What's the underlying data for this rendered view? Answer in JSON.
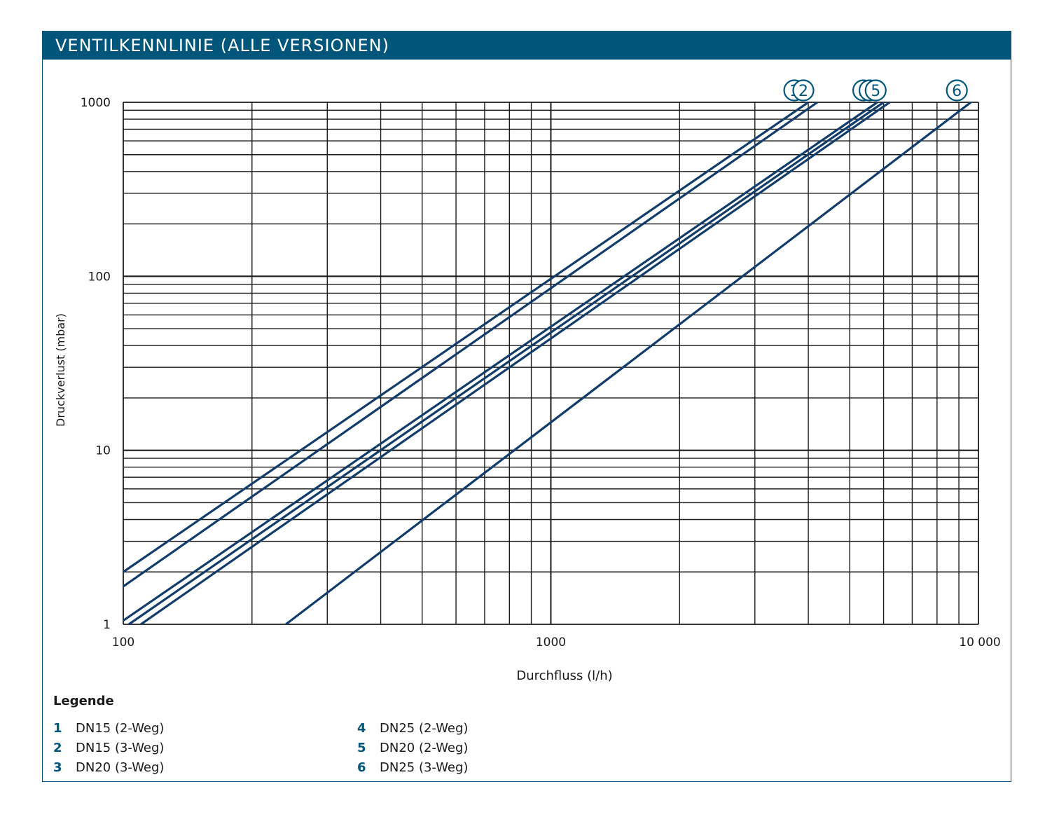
{
  "header": {
    "title": "VENTILKENNLINIE (ALLE VERSIONEN)"
  },
  "chart_data": {
    "type": "line",
    "title": "",
    "xlabel": "Durchfluss (l/h)",
    "ylabel": "Druckverlust (mbar)",
    "xscale": "log",
    "yscale": "log",
    "xlim": [
      100,
      10000
    ],
    "ylim": [
      1,
      1000
    ],
    "x_ticks": [
      "100",
      "1000",
      "10 000"
    ],
    "y_ticks": [
      "1",
      "10",
      "100",
      "1000"
    ],
    "grid": true,
    "series": [
      {
        "name": "1",
        "points": [
          [
            100,
            2.0
          ],
          [
            1000,
            78
          ],
          [
            4000,
            1000
          ]
        ]
      },
      {
        "name": "2",
        "points": [
          [
            100,
            1.65
          ],
          [
            1000,
            60
          ],
          [
            4200,
            1000
          ]
        ]
      },
      {
        "name": "3",
        "points": [
          [
            100,
            1.05
          ],
          [
            1000,
            52
          ],
          [
            5800,
            1000
          ]
        ]
      },
      {
        "name": "4",
        "points": [
          [
            100,
            0.95
          ],
          [
            1000,
            46
          ],
          [
            6000,
            1000
          ]
        ]
      },
      {
        "name": "5",
        "points": [
          [
            100,
            0.85
          ],
          [
            1000,
            42
          ],
          [
            6200,
            1000
          ]
        ]
      },
      {
        "name": "6",
        "points": [
          [
            240,
            1.0
          ],
          [
            1000,
            14
          ],
          [
            9600,
            1000
          ]
        ]
      }
    ]
  },
  "legend": {
    "title": "Legende",
    "items": [
      {
        "num": "1",
        "label": "DN15 (2-Weg)"
      },
      {
        "num": "2",
        "label": "DN15 (3-Weg)"
      },
      {
        "num": "3",
        "label": "DN20 (3-Weg)"
      },
      {
        "num": "4",
        "label": "DN25 (2-Weg)"
      },
      {
        "num": "5",
        "label": "DN20 (2-Weg)"
      },
      {
        "num": "6",
        "label": "DN25 (3-Weg)"
      }
    ]
  },
  "colors": {
    "brand": "#00567a",
    "line": "#123c69",
    "grid": "#1a1a1a"
  }
}
